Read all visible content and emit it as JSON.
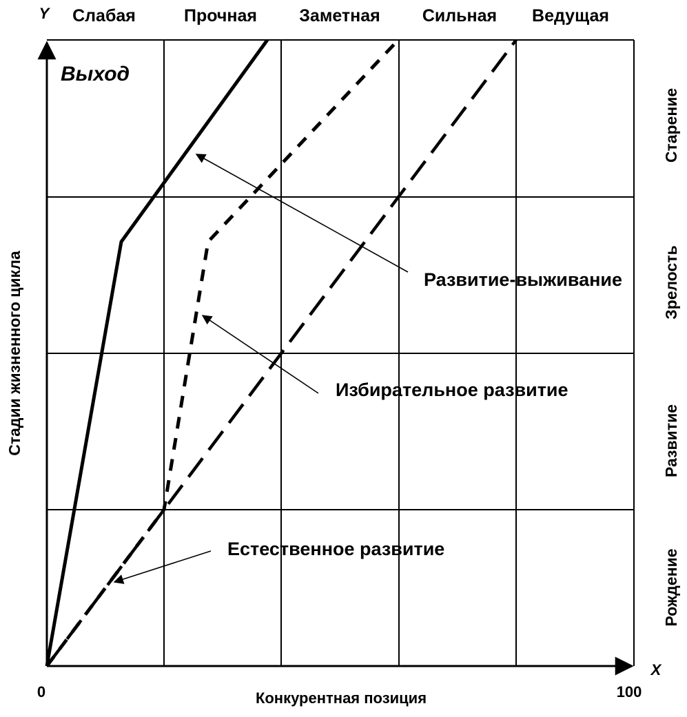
{
  "axes": {
    "y_letter": "Y",
    "x_letter": "X",
    "y_title": "Стадии жизненного цикла",
    "x_title": "Конкурентная позиция",
    "x_min_label": "0",
    "x_max_label": "100"
  },
  "columns": [
    "Слабая",
    "Прочная",
    "Заметная",
    "Сильная",
    "Ведущая"
  ],
  "rows": [
    "Старение",
    "Зрелость",
    "Развитие",
    "Рождение"
  ],
  "exit_label": "Выход",
  "strategies": [
    {
      "label": "Развитие-выживание",
      "line_style": "solid"
    },
    {
      "label": "Избирательное развитие",
      "line_style": "short-dash"
    },
    {
      "label": "Естественное развитие",
      "line_style": "long-dash"
    }
  ],
  "colors": {
    "ink": "#000000",
    "background": "#ffffff"
  }
}
